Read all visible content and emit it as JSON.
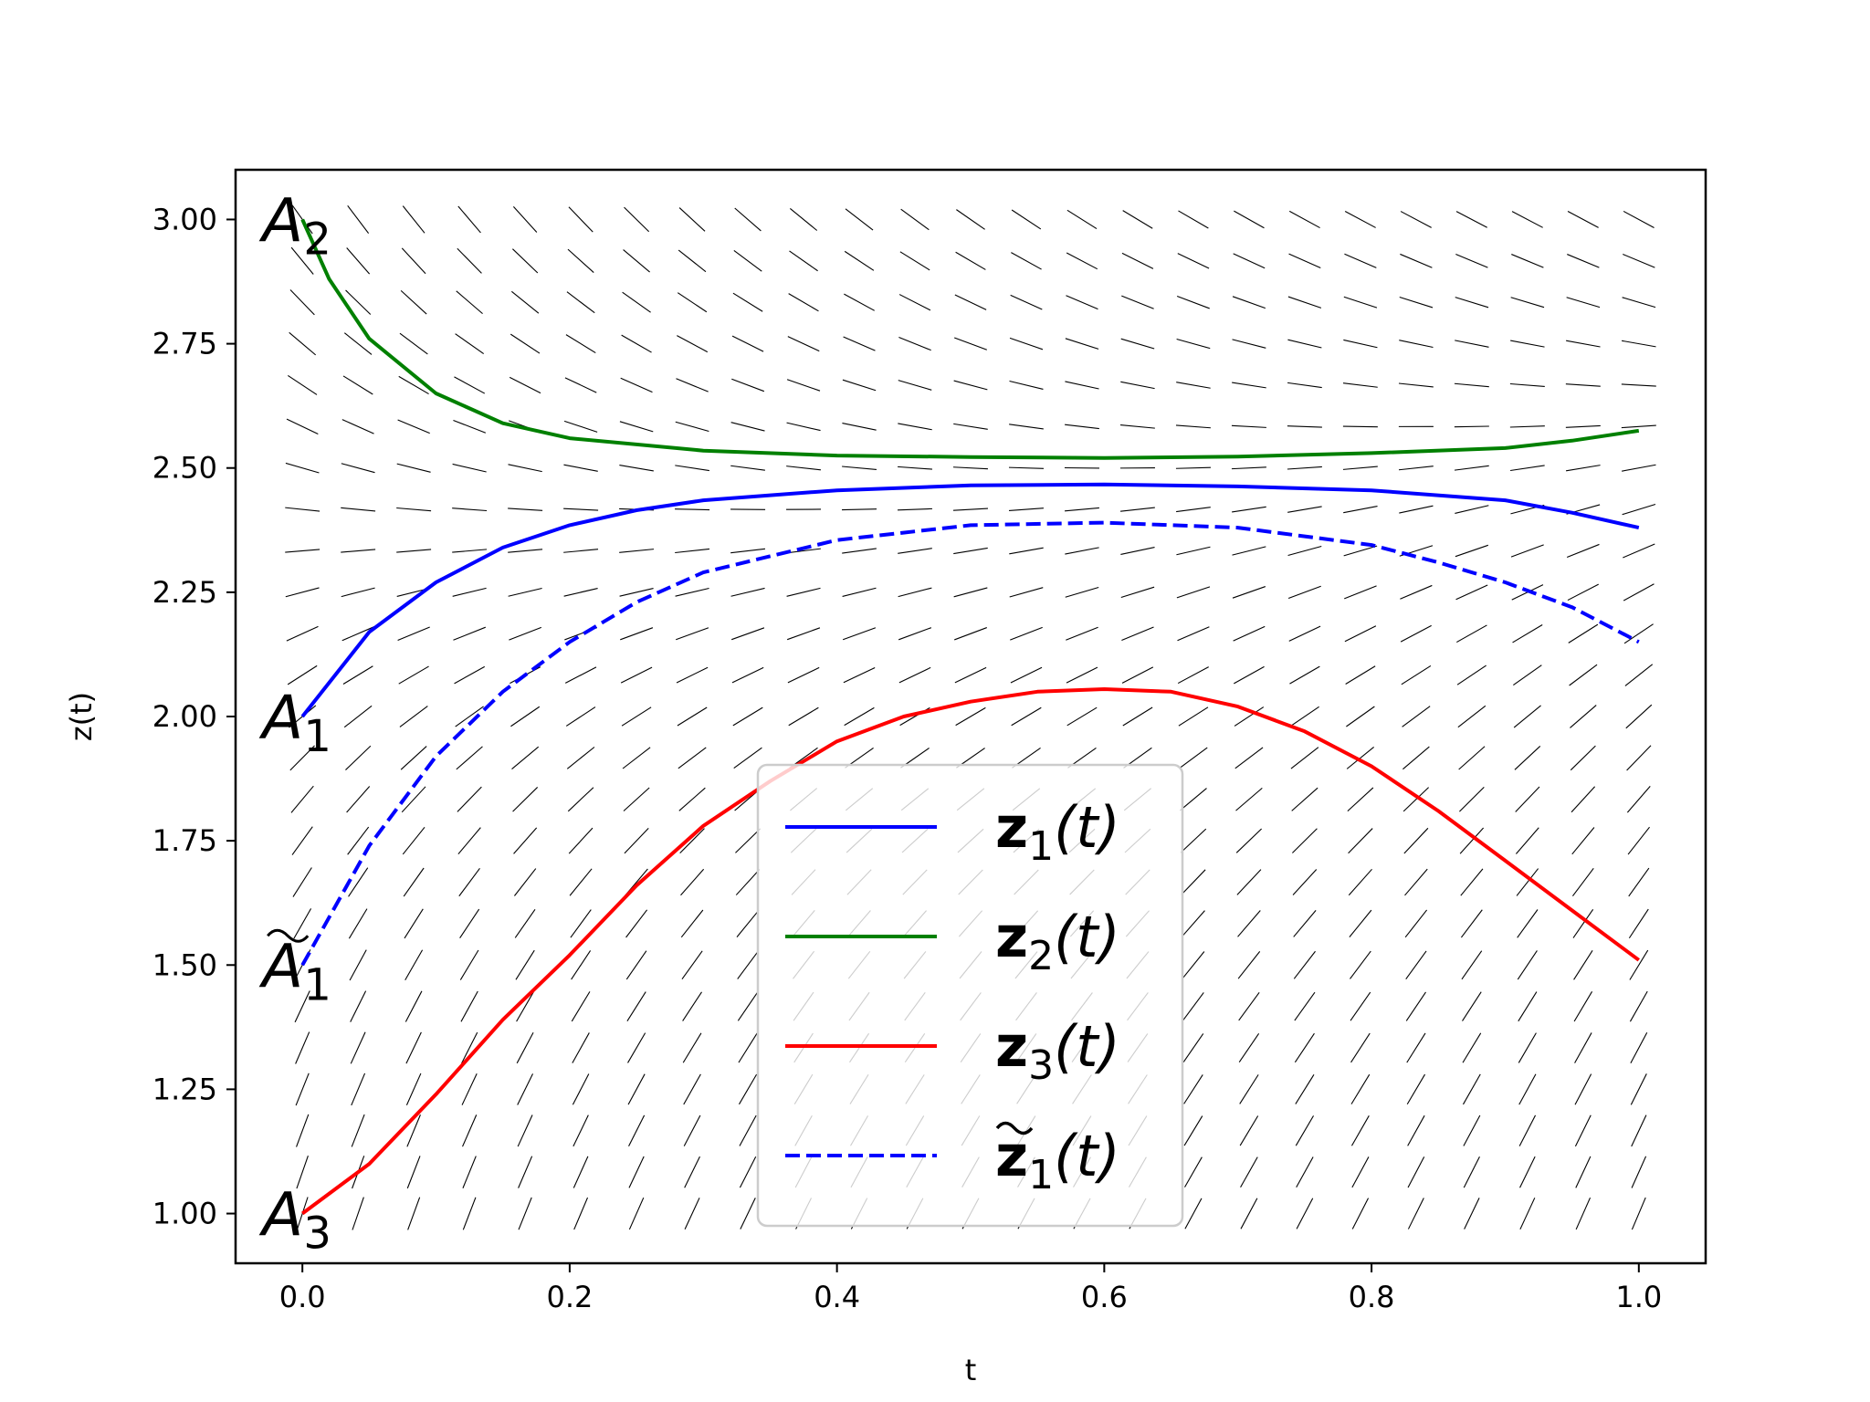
{
  "chart_data": {
    "type": "line",
    "xlabel": "t",
    "ylabel": "z(t)",
    "xlim": [
      -0.05,
      1.05
    ],
    "ylim": [
      0.9,
      3.1
    ],
    "xticks": [
      "0.0",
      "0.2",
      "0.4",
      "0.6",
      "0.8",
      "1.0"
    ],
    "yticks": [
      "1.00",
      "1.25",
      "1.50",
      "1.75",
      "2.00",
      "2.25",
      "2.50",
      "2.75",
      "3.00"
    ],
    "grid": false,
    "legend_position": "lower-center",
    "background_field": "quiver (direction field, short black arrows)",
    "series": [
      {
        "name": "z1(t)",
        "legend_main": "z",
        "legend_sub": "1",
        "legend_tail": "(t)",
        "tilde": false,
        "color": "#0000ff",
        "style": "solid",
        "x": [
          0,
          0.05,
          0.1,
          0.15,
          0.2,
          0.25,
          0.3,
          0.4,
          0.5,
          0.6,
          0.7,
          0.8,
          0.9,
          0.95,
          1.0
        ],
        "y": [
          2.0,
          2.17,
          2.27,
          2.34,
          2.385,
          2.415,
          2.435,
          2.455,
          2.465,
          2.467,
          2.463,
          2.455,
          2.435,
          2.41,
          2.38
        ]
      },
      {
        "name": "z2(t)",
        "legend_main": "z",
        "legend_sub": "2",
        "legend_tail": "(t)",
        "tilde": false,
        "color": "#008000",
        "style": "solid",
        "x": [
          0,
          0.02,
          0.05,
          0.1,
          0.15,
          0.2,
          0.3,
          0.4,
          0.5,
          0.6,
          0.7,
          0.8,
          0.9,
          0.95,
          1.0
        ],
        "y": [
          3.0,
          2.88,
          2.76,
          2.65,
          2.59,
          2.56,
          2.535,
          2.525,
          2.522,
          2.52,
          2.523,
          2.53,
          2.54,
          2.555,
          2.575
        ]
      },
      {
        "name": "z3(t)",
        "legend_main": "z",
        "legend_sub": "3",
        "legend_tail": "(t)",
        "tilde": false,
        "color": "#ff0000",
        "style": "solid",
        "x": [
          0,
          0.05,
          0.1,
          0.15,
          0.2,
          0.25,
          0.3,
          0.35,
          0.4,
          0.45,
          0.5,
          0.55,
          0.6,
          0.65,
          0.7,
          0.75,
          0.8,
          0.85,
          0.9,
          0.95,
          1.0
        ],
        "y": [
          1.0,
          1.1,
          1.24,
          1.39,
          1.52,
          1.66,
          1.78,
          1.87,
          1.95,
          2.0,
          2.03,
          2.05,
          2.055,
          2.05,
          2.02,
          1.97,
          1.9,
          1.81,
          1.71,
          1.61,
          1.51
        ]
      },
      {
        "name": "z~1(t)",
        "legend_main": "z",
        "legend_sub": "1",
        "legend_tail": "(t)",
        "tilde": true,
        "color": "#0000ff",
        "style": "dashed",
        "x": [
          0,
          0.05,
          0.1,
          0.15,
          0.2,
          0.25,
          0.3,
          0.4,
          0.5,
          0.6,
          0.7,
          0.8,
          0.85,
          0.9,
          0.95,
          1.0
        ],
        "y": [
          1.5,
          1.74,
          1.92,
          2.05,
          2.15,
          2.23,
          2.29,
          2.355,
          2.385,
          2.39,
          2.38,
          2.345,
          2.31,
          2.27,
          2.22,
          2.15
        ]
      }
    ],
    "point_labels": [
      {
        "main": "A",
        "sub": "2",
        "tilde": false,
        "x": 0.0,
        "y": 3.0
      },
      {
        "main": "A",
        "sub": "1",
        "tilde": false,
        "x": 0.0,
        "y": 2.0
      },
      {
        "main": "A",
        "sub": "1",
        "tilde": true,
        "x": 0.0,
        "y": 1.5
      },
      {
        "main": "A",
        "sub": "3",
        "tilde": false,
        "x": 0.0,
        "y": 1.0
      }
    ]
  }
}
